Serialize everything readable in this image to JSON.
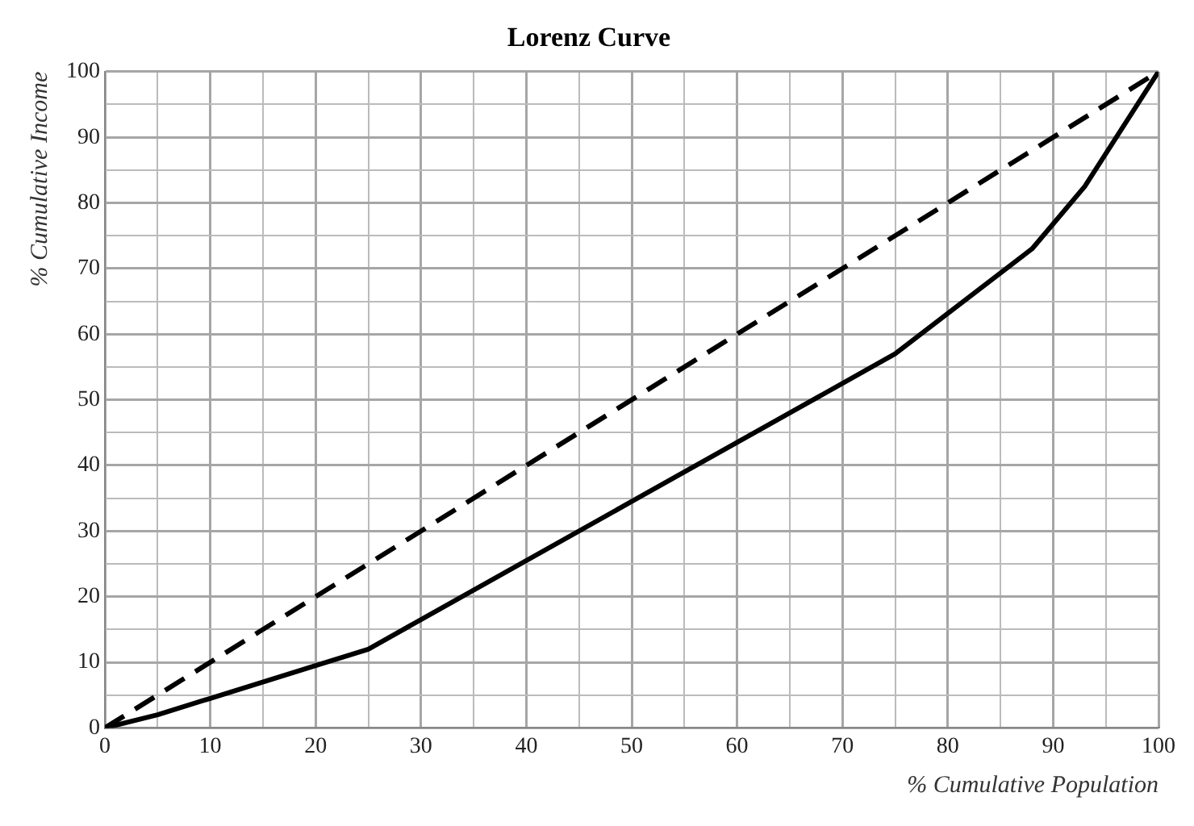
{
  "chart_data": {
    "type": "line",
    "title": "Lorenz Curve",
    "xlabel": "% Cumulative Population",
    "ylabel": "% Cumulative Income",
    "series": [
      {
        "x": [
          0,
          5,
          10,
          20,
          25,
          50,
          75,
          88,
          93,
          100
        ],
        "values": [
          0,
          2,
          4.5,
          9.5,
          12,
          34.5,
          57,
          73,
          82.5,
          100
        ],
        "color": "#000000",
        "line_style": "solid"
      },
      {
        "x": [
          0,
          100
        ],
        "values": [
          0,
          100
        ],
        "color": "#000000",
        "line_style": "dashed"
      }
    ],
    "xlim": [
      0,
      100
    ],
    "ylim": [
      0,
      100
    ],
    "xticks": [
      0,
      {
        "value": 5,
        "label": null
      },
      10,
      {
        "value": 15,
        "label": null
      },
      20,
      {
        "value": 25,
        "label": null
      },
      30,
      {
        "value": 35,
        "label": null
      },
      40,
      {
        "value": 45,
        "label": null
      },
      50,
      {
        "value": 55,
        "label": null
      },
      60,
      {
        "value": 65,
        "label": null
      },
      70,
      {
        "value": 75,
        "label": null
      },
      80,
      {
        "value": 85,
        "label": null
      },
      90,
      {
        "value": 95,
        "label": null
      },
      100
    ],
    "yticks": [
      0,
      {
        "value": 5,
        "label": null
      },
      10,
      {
        "value": 15,
        "label": null
      },
      20,
      {
        "value": 25,
        "label": null
      },
      30,
      {
        "value": 35,
        "label": null
      },
      40,
      {
        "value": 45,
        "label": null
      },
      50,
      {
        "value": 55,
        "label": null
      },
      60,
      {
        "value": 65,
        "label": null
      },
      70,
      {
        "value": 75,
        "label": null
      },
      80,
      {
        "value": 85,
        "label": null
      },
      90,
      {
        "value": 95,
        "label": null
      },
      100
    ],
    "grid": true,
    "marker": "none"
  }
}
